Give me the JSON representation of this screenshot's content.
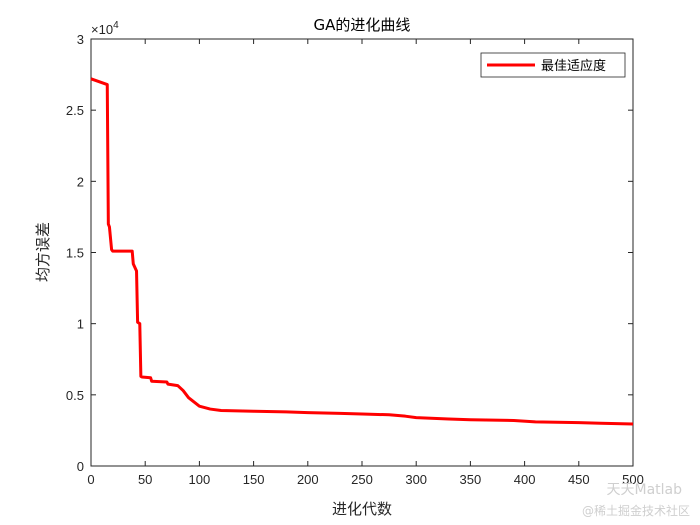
{
  "chart_data": {
    "type": "line",
    "title": "GA的进化曲线",
    "xlabel": "进化代数",
    "ylabel": "均方误差",
    "xlim": [
      0,
      500
    ],
    "ylim": [
      0,
      30000
    ],
    "x_ticks": [
      0,
      50,
      100,
      150,
      200,
      250,
      300,
      350,
      400,
      450,
      500
    ],
    "y_ticks": [
      0,
      5000,
      10000,
      15000,
      20000,
      25000,
      30000
    ],
    "y_tick_labels": [
      "0",
      "0.5",
      "1",
      "1.5",
      "2",
      "2.5",
      "3"
    ],
    "y_exponent": "×10",
    "y_exponent_power": "4",
    "grid": false,
    "legend_position": "top-right",
    "series": [
      {
        "name": "最佳适应度",
        "color": "#ff0000",
        "x": [
          0,
          15,
          16,
          17,
          19,
          20,
          38,
          39,
          42,
          43,
          45,
          46,
          47,
          55,
          56,
          70,
          71,
          80,
          85,
          90,
          95,
          100,
          110,
          120,
          150,
          180,
          200,
          230,
          250,
          275,
          290,
          300,
          330,
          350,
          390,
          410,
          450,
          470,
          500
        ],
        "y": [
          27200,
          26800,
          17000,
          16800,
          15200,
          15100,
          15100,
          14200,
          13700,
          10100,
          10000,
          6300,
          6250,
          6200,
          5950,
          5900,
          5750,
          5650,
          5300,
          4800,
          4500,
          4200,
          4000,
          3900,
          3850,
          3800,
          3750,
          3700,
          3650,
          3600,
          3500,
          3400,
          3300,
          3250,
          3200,
          3100,
          3050,
          3000,
          2950
        ]
      }
    ]
  },
  "watermark": {
    "line1": "天天Matlab",
    "line2": "@稀土掘金技术社区"
  }
}
